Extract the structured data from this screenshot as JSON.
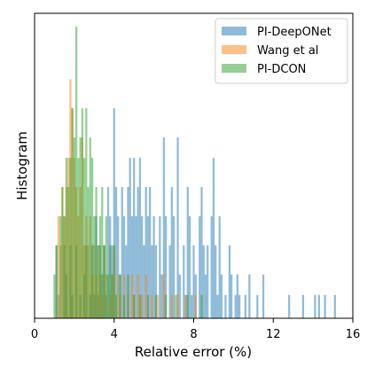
{
  "chart_data": {
    "type": "bar",
    "subtype": "histogram",
    "title": "",
    "xlabel": "Relative error (%)",
    "ylabel": "Histogram",
    "xlim": [
      0,
      16
    ],
    "ylim": [
      0,
      1.0
    ],
    "x_ticks": [
      "0",
      "4",
      "8",
      "12",
      "16"
    ],
    "y_ticks_shown": false,
    "grid": false,
    "legend_position": "top-right",
    "bin_width": 0.1,
    "colors": {
      "PI-DeepONet": "#1f77b4",
      "Wang et al": "#ff7f0e",
      "PI-DCON": "#2ca02c"
    },
    "opacity": 0.5,
    "series": [
      {
        "name": "PI-DeepONet",
        "values": [
          [
            1.1,
            0.25
          ],
          [
            1.2,
            0.08
          ],
          [
            1.5,
            0.25
          ],
          [
            1.6,
            0.15
          ],
          [
            1.8,
            0.25
          ],
          [
            1.9,
            0.08
          ],
          [
            2.1,
            0.25
          ],
          [
            2.3,
            0.08
          ],
          [
            2.5,
            0.15
          ],
          [
            2.6,
            0.25
          ],
          [
            2.8,
            0.08
          ],
          [
            2.9,
            0.25
          ],
          [
            3.0,
            0.08
          ],
          [
            3.1,
            0.35
          ],
          [
            3.2,
            0.08
          ],
          [
            3.3,
            0.25
          ],
          [
            3.4,
            0.15
          ],
          [
            3.5,
            0.25
          ],
          [
            3.6,
            0.08
          ],
          [
            3.7,
            0.45
          ],
          [
            3.8,
            0.35
          ],
          [
            3.9,
            0.25
          ],
          [
            4.0,
            0.72
          ],
          [
            4.1,
            0.45
          ],
          [
            4.2,
            0.35
          ],
          [
            4.3,
            0.15
          ],
          [
            4.4,
            0.45
          ],
          [
            4.5,
            0.35
          ],
          [
            4.6,
            0.25
          ],
          [
            4.7,
            0.45
          ],
          [
            4.8,
            0.55
          ],
          [
            4.9,
            0.35
          ],
          [
            5.0,
            0.55
          ],
          [
            5.1,
            0.35
          ],
          [
            5.2,
            0.45
          ],
          [
            5.3,
            0.55
          ],
          [
            5.4,
            0.35
          ],
          [
            5.5,
            0.25
          ],
          [
            5.6,
            0.45
          ],
          [
            5.7,
            0.35
          ],
          [
            5.8,
            0.45
          ],
          [
            5.9,
            0.25
          ],
          [
            6.0,
            0.35
          ],
          [
            6.1,
            0.25
          ],
          [
            6.3,
            0.35
          ],
          [
            6.4,
            0.15
          ],
          [
            6.5,
            0.62
          ],
          [
            6.6,
            0.35
          ],
          [
            6.8,
            0.25
          ],
          [
            6.9,
            0.45
          ],
          [
            7.0,
            0.35
          ],
          [
            7.2,
            0.62
          ],
          [
            7.3,
            0.15
          ],
          [
            7.5,
            0.25
          ],
          [
            7.6,
            0.08
          ],
          [
            7.7,
            0.45
          ],
          [
            7.8,
            0.35
          ],
          [
            7.9,
            0.08
          ],
          [
            8.0,
            0.25
          ],
          [
            8.1,
            0.15
          ],
          [
            8.3,
            0.35
          ],
          [
            8.4,
            0.45
          ],
          [
            8.5,
            0.25
          ],
          [
            8.6,
            0.15
          ],
          [
            8.7,
            0.25
          ],
          [
            8.9,
            0.35
          ],
          [
            9.0,
            0.55
          ],
          [
            9.1,
            0.25
          ],
          [
            9.2,
            0.08
          ],
          [
            9.3,
            0.35
          ],
          [
            9.4,
            0.15
          ],
          [
            9.6,
            0.08
          ],
          [
            9.8,
            0.25
          ],
          [
            9.9,
            0.15
          ],
          [
            10.1,
            0.08
          ],
          [
            10.2,
            0.15
          ],
          [
            10.3,
            0.08
          ],
          [
            10.6,
            0.08
          ],
          [
            10.8,
            0.15
          ],
          [
            11.2,
            0.08
          ],
          [
            11.5,
            0.15
          ],
          [
            12.8,
            0.08
          ],
          [
            13.5,
            0.08
          ],
          [
            14.1,
            0.08
          ],
          [
            14.3,
            0.08
          ],
          [
            14.6,
            0.08
          ],
          [
            15.1,
            0.08
          ]
        ]
      },
      {
        "name": "Wang et al",
        "values": [
          [
            1.2,
            0.35
          ],
          [
            1.3,
            0.25
          ],
          [
            1.4,
            0.45
          ],
          [
            1.5,
            0.35
          ],
          [
            1.6,
            0.45
          ],
          [
            1.7,
            0.55
          ],
          [
            1.8,
            0.82
          ],
          [
            1.9,
            0.72
          ],
          [
            2.0,
            0.55
          ],
          [
            2.1,
            0.45
          ],
          [
            2.2,
            0.35
          ],
          [
            2.3,
            0.45
          ],
          [
            2.4,
            0.62
          ],
          [
            2.5,
            0.25
          ],
          [
            2.6,
            0.35
          ],
          [
            2.7,
            0.25
          ],
          [
            2.8,
            0.35
          ],
          [
            2.9,
            0.15
          ],
          [
            3.0,
            0.25
          ],
          [
            3.1,
            0.15
          ],
          [
            3.2,
            0.25
          ],
          [
            3.3,
            0.15
          ],
          [
            3.4,
            0.08
          ],
          [
            3.5,
            0.25
          ],
          [
            3.6,
            0.15
          ],
          [
            3.8,
            0.08
          ],
          [
            3.9,
            0.15
          ],
          [
            4.0,
            0.25
          ],
          [
            4.2,
            0.15
          ],
          [
            4.3,
            0.08
          ],
          [
            4.5,
            0.15
          ],
          [
            4.7,
            0.08
          ],
          [
            4.9,
            0.15
          ],
          [
            5.0,
            0.08
          ],
          [
            5.2,
            0.15
          ],
          [
            5.4,
            0.08
          ],
          [
            5.6,
            0.15
          ],
          [
            5.9,
            0.08
          ],
          [
            6.2,
            0.08
          ],
          [
            6.5,
            0.15
          ],
          [
            6.9,
            0.08
          ],
          [
            7.2,
            0.08
          ],
          [
            7.6,
            0.08
          ],
          [
            8.1,
            0.08
          ]
        ]
      },
      {
        "name": "PI-DCON",
        "values": [
          [
            1.0,
            0.15
          ],
          [
            1.1,
            0.25
          ],
          [
            1.3,
            0.35
          ],
          [
            1.4,
            0.45
          ],
          [
            1.5,
            0.35
          ],
          [
            1.6,
            0.55
          ],
          [
            1.7,
            0.45
          ],
          [
            1.8,
            0.55
          ],
          [
            1.9,
            0.72
          ],
          [
            2.0,
            0.62
          ],
          [
            2.1,
            1.0
          ],
          [
            2.2,
            0.55
          ],
          [
            2.3,
            0.62
          ],
          [
            2.4,
            0.72
          ],
          [
            2.5,
            0.55
          ],
          [
            2.6,
            0.72
          ],
          [
            2.7,
            0.45
          ],
          [
            2.8,
            0.62
          ],
          [
            2.9,
            0.55
          ],
          [
            3.0,
            0.35
          ],
          [
            3.1,
            0.45
          ],
          [
            3.2,
            0.25
          ],
          [
            3.3,
            0.35
          ],
          [
            3.4,
            0.45
          ],
          [
            3.5,
            0.25
          ],
          [
            3.6,
            0.35
          ],
          [
            3.7,
            0.15
          ],
          [
            3.8,
            0.25
          ],
          [
            3.9,
            0.15
          ],
          [
            4.0,
            0.25
          ],
          [
            4.1,
            0.08
          ],
          [
            4.3,
            0.15
          ],
          [
            4.5,
            0.08
          ],
          [
            4.7,
            0.15
          ],
          [
            5.0,
            0.08
          ],
          [
            5.3,
            0.08
          ],
          [
            5.7,
            0.08
          ],
          [
            6.1,
            0.08
          ],
          [
            6.6,
            0.08
          ],
          [
            7.1,
            0.08
          ],
          [
            7.7,
            0.08
          ],
          [
            8.4,
            0.08
          ]
        ]
      }
    ]
  }
}
